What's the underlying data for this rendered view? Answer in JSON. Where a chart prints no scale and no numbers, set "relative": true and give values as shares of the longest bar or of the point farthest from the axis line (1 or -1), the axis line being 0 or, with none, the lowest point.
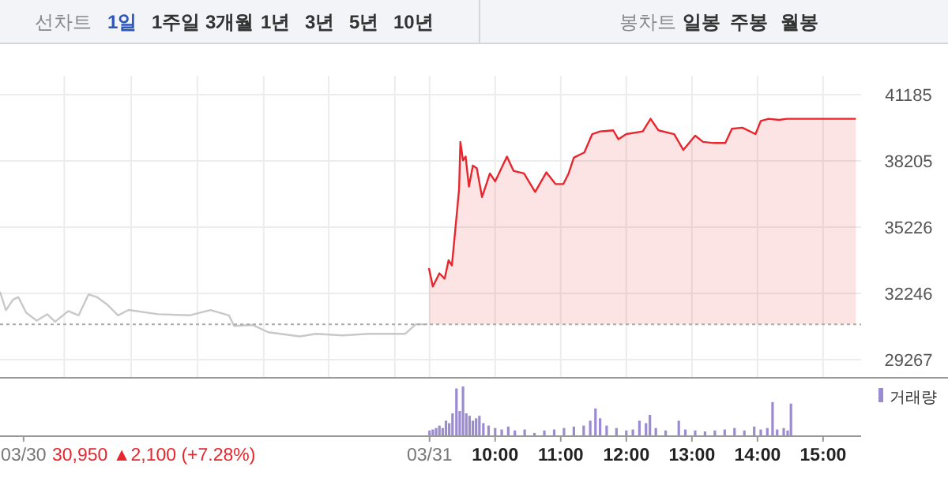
{
  "chart_data": [
    {
      "type": "other",
      "annotations": [
        "선차트",
        "1일",
        "1주일",
        "3개월",
        "1년",
        "3년",
        "5년",
        "10년",
        "봉차트",
        "일봉",
        "주봉",
        "월봉"
      ]
    },
    {
      "type": "line",
      "xlim": [
        2.45,
        15.58
      ],
      "ylim": [
        29267,
        41185
      ],
      "yticks": [
        29267,
        32246,
        35226,
        38205,
        41185
      ],
      "xticks": [
        {
          "value": 3.43,
          "label": null
        },
        {
          "value": 4.45,
          "label": null
        },
        {
          "value": 5.46,
          "label": null
        },
        {
          "value": 6.47,
          "label": null
        },
        {
          "value": 7.46,
          "label": null
        },
        {
          "value": 8.47,
          "label": null
        },
        {
          "value": 9,
          "label": null
        },
        {
          "value": 10,
          "label": null
        },
        {
          "value": 11,
          "label": null
        },
        {
          "value": 12,
          "label": null
        },
        {
          "value": 13,
          "label": null
        },
        {
          "value": 14,
          "label": null
        },
        {
          "value": 15,
          "label": null
        }
      ],
      "grid": true,
      "tick_labels": "y",
      "legend": false,
      "ref_lines": [
        {
          "axis": "y",
          "value": 30850,
          "color": "#aaaaaa",
          "line_style": "dotted"
        }
      ],
      "series": [
        {
          "type": "line",
          "color": "#c8c8c8",
          "x": [
            2.45,
            2.54,
            2.65,
            2.73,
            2.85,
            3.01,
            3.17,
            3.29,
            3.49,
            3.65,
            3.8,
            3.93,
            4.09,
            4.25,
            4.41,
            4.86,
            5.34,
            5.66,
            5.94,
            6.02,
            6.3,
            6.54,
            7.02,
            7.27,
            7.67,
            8.07,
            8.63,
            8.79,
            8.97
          ],
          "values": [
            32320,
            31490,
            31970,
            32080,
            31380,
            31025,
            31310,
            30975,
            31450,
            31260,
            32200,
            32080,
            31730,
            31260,
            31500,
            31310,
            31260,
            31500,
            31260,
            30785,
            30830,
            30500,
            30315,
            30430,
            30360,
            30430,
            30430,
            30860,
            30860
          ]
        },
        {
          "type": "area",
          "color": "#e8262d",
          "x": [
            8.99,
            9.05,
            9.15,
            9.23,
            9.29,
            9.34,
            9.39,
            9.45,
            9.47,
            9.51,
            9.55,
            9.6,
            9.66,
            9.72,
            9.8,
            9.92,
            10,
            10.18,
            10.28,
            10.44,
            10.61,
            10.78,
            10.92,
            11.04,
            11.12,
            11.2,
            11.36,
            11.48,
            11.6,
            11.8,
            11.88,
            12,
            12.25,
            12.37,
            12.49,
            12.73,
            12.87,
            13.05,
            13.17,
            13.33,
            13.51,
            13.61,
            13.77,
            13.97,
            14.05,
            14.17,
            14.33,
            14.45,
            15.5
          ],
          "values": [
            33385,
            32560,
            33150,
            32910,
            33740,
            33505,
            35040,
            36930,
            39060,
            38230,
            38400,
            37050,
            37995,
            37880,
            36580,
            37640,
            37285,
            38400,
            37760,
            37640,
            36810,
            37690,
            37165,
            37165,
            37640,
            38350,
            38585,
            39410,
            39530,
            39580,
            39180,
            39410,
            39530,
            40100,
            39580,
            39410,
            38700,
            39340,
            39060,
            39010,
            39010,
            39650,
            39700,
            39410,
            40000,
            40100,
            40050,
            40100,
            40100
          ]
        }
      ]
    },
    {
      "type": "bar",
      "relative": true,
      "xlim": [
        2.45,
        15.58
      ],
      "tick_labels": "x",
      "grid": false,
      "legend": "top right",
      "xticks": [
        {
          "value": 2.81,
          "label": "03/30"
        },
        {
          "value": 9,
          "label": "03/31"
        },
        {
          "value": 10,
          "label": "10:00"
        },
        {
          "value": 11,
          "label": "11:00"
        },
        {
          "value": 12,
          "label": "12:00"
        },
        {
          "value": 13,
          "label": "13:00"
        },
        {
          "value": 14,
          "label": "14:00"
        },
        {
          "value": 15,
          "label": "15:00"
        }
      ],
      "annotations": [
        "30,950 ▲2,100 (+7.28%)"
      ],
      "series": [
        {
          "name": "거래량",
          "color": "#9b8bd0",
          "x": [
            9,
            9.05,
            9.1,
            9.15,
            9.2,
            9.25,
            9.3,
            9.35,
            9.41,
            9.46,
            9.51,
            9.56,
            9.61,
            9.66,
            9.71,
            9.76,
            9.82,
            9.9,
            10,
            10.1,
            10.2,
            10.3,
            10.45,
            10.6,
            10.75,
            10.9,
            11.05,
            11.2,
            11.35,
            11.45,
            11.53,
            11.6,
            11.7,
            11.85,
            12,
            12.1,
            12.2,
            12.3,
            12.36,
            12.45,
            12.6,
            12.8,
            12.9,
            13.05,
            13.2,
            13.35,
            13.5,
            13.65,
            13.8,
            13.95,
            14.05,
            14.15,
            14.23,
            14.3,
            14.4,
            14.46,
            14.51
          ],
          "values": [
            0.1,
            0.12,
            0.15,
            0.2,
            0.15,
            0.3,
            0.25,
            0.45,
            0.96,
            0.5,
            1,
            0.45,
            0.4,
            0.3,
            0.35,
            0.4,
            0.25,
            0.2,
            0.15,
            0.12,
            0.18,
            0.1,
            0.12,
            0.05,
            0.1,
            0.12,
            0.15,
            0.18,
            0.2,
            0.3,
            0.55,
            0.35,
            0.2,
            0.15,
            0.1,
            0.12,
            0.3,
            0.25,
            0.42,
            0.15,
            0.1,
            0.3,
            0.12,
            0.1,
            0.08,
            0.1,
            0.12,
            0.15,
            0.1,
            0.18,
            0.12,
            0.15,
            0.68,
            0.12,
            0.15,
            0.1,
            0.65
          ]
        }
      ]
    }
  ]
}
